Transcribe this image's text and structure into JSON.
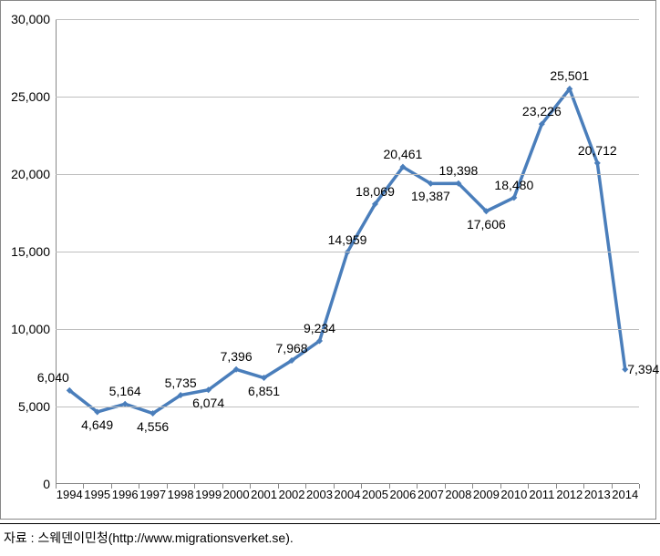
{
  "chart": {
    "type": "line",
    "background_color": "#ffffff",
    "grid_color": "#bfbfbf",
    "axis_color": "#888888",
    "line_color": "#4a7ebb",
    "marker_color": "#4a7ebb",
    "line_width": 3.5,
    "marker_size": 7,
    "marker_style": "diamond",
    "ylim": [
      0,
      30000
    ],
    "ytick_step": 5000,
    "y_ticks": [
      {
        "v": 0,
        "label": "0"
      },
      {
        "v": 5000,
        "label": "5,000"
      },
      {
        "v": 10000,
        "label": "10,000"
      },
      {
        "v": 15000,
        "label": "15,000"
      },
      {
        "v": 20000,
        "label": "20,000"
      },
      {
        "v": 25000,
        "label": "25,000"
      },
      {
        "v": 30000,
        "label": "30,000"
      }
    ],
    "categories": [
      "1994",
      "1995",
      "1996",
      "1997",
      "1998",
      "1999",
      "2000",
      "2001",
      "2002",
      "2003",
      "2004",
      "2005",
      "2006",
      "2007",
      "2008",
      "2009",
      "2010",
      "2011",
      "2012",
      "2013",
      "2014"
    ],
    "values": [
      6040,
      4649,
      5164,
      4556,
      5735,
      6074,
      7396,
      6851,
      7968,
      9234,
      14959,
      18069,
      20461,
      19387,
      19398,
      17606,
      18480,
      23226,
      25501,
      20712,
      7394
    ],
    "data_labels": [
      "6,040",
      "4,649",
      "5,164",
      "4,556",
      "5,735",
      "6,074",
      "7,396",
      "6,851",
      "7,968",
      "9,234",
      "14,959",
      "18,069",
      "20,461",
      "19,387",
      "19,398",
      "17,606",
      "18,480",
      "23,226",
      "25,501",
      "20,712",
      "7,394"
    ],
    "label_positions": [
      "left",
      "below",
      "above",
      "below",
      "above",
      "below",
      "above",
      "below",
      "above",
      "above",
      "above",
      "above",
      "above",
      "below",
      "above",
      "below",
      "above",
      "above",
      "above",
      "above",
      "right"
    ],
    "label_fontsize": 14,
    "tick_fontsize": 14,
    "x_tick_fontsize": 13
  },
  "source": {
    "text": "자료 : 스웨덴이민청(http://www.migrationsverket.se)."
  }
}
